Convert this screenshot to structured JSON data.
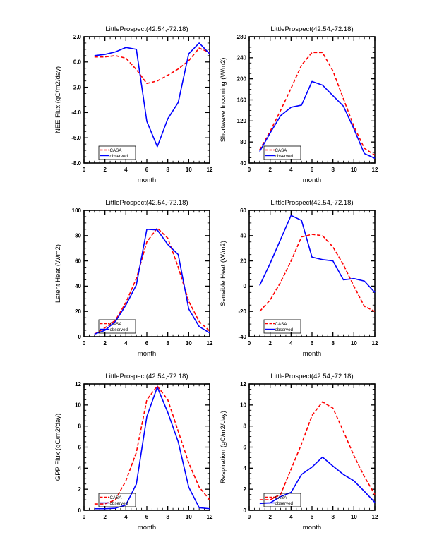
{
  "page": {
    "site_label": "LittleProspect(42.54,-72.18)"
  },
  "legend": {
    "casa_label": "CASA",
    "observed_label": "observed"
  },
  "colors": {
    "casa": "#ff0000",
    "observed": "#0000ff",
    "frame": "#000000",
    "background": "#ffffff"
  },
  "chart_data": [
    {
      "type": "line",
      "title": "LittleProspect(42.54,-72.18)",
      "xlabel": "month",
      "ylabel": "NEE Flux (gC/m2/day)",
      "xlim": [
        0,
        12
      ],
      "xticks": [
        0,
        2,
        4,
        6,
        8,
        10,
        12
      ],
      "xminor": 0.5,
      "ylim": [
        -8,
        2
      ],
      "ytick_step": 2,
      "yminor": 0.5,
      "ydecimals": 1,
      "grid": false,
      "legend_position": "lower-left",
      "x": [
        1,
        2,
        3,
        4,
        5,
        6,
        7,
        8,
        9,
        10,
        11,
        12
      ],
      "series": [
        {
          "name": "CASA",
          "color": "#ff0000",
          "dash": true,
          "values": [
            0.4,
            0.4,
            0.5,
            0.3,
            -0.6,
            -1.7,
            -1.5,
            -1.05,
            -0.55,
            0.1,
            1.1,
            0.75
          ]
        },
        {
          "name": "observed",
          "color": "#0000ff",
          "dash": false,
          "values": [
            0.5,
            0.6,
            0.8,
            1.15,
            1.0,
            -4.7,
            -6.7,
            -4.5,
            -3.2,
            0.65,
            1.5,
            0.65
          ]
        }
      ]
    },
    {
      "type": "line",
      "title": "LittleProspect(42.54,-72.18)",
      "xlabel": "month",
      "ylabel": "Shortwave Incoming (W/m2)",
      "xlim": [
        0,
        12
      ],
      "xticks": [
        0,
        2,
        4,
        6,
        8,
        10,
        12
      ],
      "xminor": 0.5,
      "ylim": [
        40,
        280
      ],
      "ytick_step": 40,
      "yminor": 10,
      "ydecimals": 0,
      "grid": false,
      "legend_position": "lower-left",
      "x": [
        1,
        2,
        3,
        4,
        5,
        6,
        7,
        8,
        9,
        10,
        11,
        12
      ],
      "series": [
        {
          "name": "CASA",
          "color": "#ff0000",
          "dash": true,
          "values": [
            65,
            100,
            140,
            182,
            226,
            250,
            250,
            215,
            162,
            110,
            68,
            55
          ]
        },
        {
          "name": "observed",
          "color": "#0000ff",
          "dash": false,
          "values": [
            62,
            97,
            130,
            146,
            150,
            195,
            188,
            168,
            148,
            105,
            58,
            49
          ]
        }
      ]
    },
    {
      "type": "line",
      "title": "LittleProspect(42.54,-72.18)",
      "xlabel": "month",
      "ylabel": "Latent Heat (W/m2)",
      "xlim": [
        0,
        12
      ],
      "xticks": [
        0,
        2,
        4,
        6,
        8,
        10,
        12
      ],
      "xminor": 0.5,
      "ylim": [
        0,
        100
      ],
      "ytick_step": 20,
      "yminor": 5,
      "ydecimals": 0,
      "grid": false,
      "legend_position": "lower-left",
      "x": [
        1,
        2,
        3,
        4,
        5,
        6,
        7,
        8,
        9,
        10,
        11,
        12
      ],
      "series": [
        {
          "name": "CASA",
          "color": "#ff0000",
          "dash": true,
          "values": [
            2,
            7,
            13,
            27,
            46,
            75,
            86,
            78,
            55,
            28,
            12,
            4.5
          ]
        },
        {
          "name": "observed",
          "color": "#0000ff",
          "dash": false,
          "values": [
            2,
            5,
            12,
            25,
            41,
            85,
            84.5,
            73,
            65,
            22,
            8,
            3
          ]
        }
      ]
    },
    {
      "type": "line",
      "title": "LittleProspect(42.54,-72.18)",
      "xlabel": "month",
      "ylabel": "Sensible Heat (W/m2)",
      "xlim": [
        0,
        12
      ],
      "xticks": [
        0,
        2,
        4,
        6,
        8,
        10,
        12
      ],
      "xminor": 0.5,
      "ylim": [
        -40,
        60
      ],
      "ytick_step": 20,
      "yminor": 5,
      "ydecimals": 0,
      "grid": false,
      "legend_position": "lower-left",
      "x": [
        1,
        2,
        3,
        4,
        5,
        6,
        7,
        8,
        9,
        10,
        11,
        12
      ],
      "series": [
        {
          "name": "CASA",
          "color": "#ff0000",
          "dash": true,
          "values": [
            -20,
            -11,
            3,
            20,
            39,
            41,
            40,
            31,
            17,
            0,
            -16,
            -20
          ]
        },
        {
          "name": "observed",
          "color": "#0000ff",
          "dash": false,
          "values": [
            0.5,
            18,
            37,
            56,
            52,
            23,
            21,
            20,
            5,
            6,
            4,
            -5
          ]
        }
      ]
    },
    {
      "type": "line",
      "title": "LittleProspect(42.54,-72.18)",
      "xlabel": "month",
      "ylabel": "GPP Flux (gC/m2/day)",
      "xlim": [
        0,
        12
      ],
      "xticks": [
        0,
        2,
        4,
        6,
        8,
        10,
        12
      ],
      "xminor": 0.5,
      "ylim": [
        0,
        12
      ],
      "ytick_step": 2,
      "yminor": 0.5,
      "ydecimals": 0,
      "grid": false,
      "legend_position": "lower-left",
      "x": [
        1,
        2,
        3,
        4,
        5,
        6,
        7,
        8,
        9,
        10,
        11,
        12
      ],
      "series": [
        {
          "name": "CASA",
          "color": "#ff0000",
          "dash": true,
          "values": [
            0.6,
            0.6,
            1.0,
            2.8,
            5.5,
            10.5,
            11.8,
            10.5,
            7.5,
            4.5,
            2.2,
            1.0
          ]
        },
        {
          "name": "observed",
          "color": "#0000ff",
          "dash": false,
          "values": [
            0.15,
            0.15,
            0.2,
            0.5,
            2.5,
            8.9,
            11.7,
            9.3,
            6.5,
            2.2,
            0.25,
            0.15
          ]
        }
      ]
    },
    {
      "type": "line",
      "title": "LittleProspect(42.54,-72.18)",
      "xlabel": "month",
      "ylabel": "Respiration (gC/m2/day)",
      "xlim": [
        0,
        12
      ],
      "xticks": [
        0,
        2,
        4,
        6,
        8,
        10,
        12
      ],
      "xminor": 0.5,
      "ylim": [
        0,
        12
      ],
      "ytick_step": 2,
      "yminor": 0.5,
      "ydecimals": 0,
      "grid": false,
      "legend_position": "lower-left",
      "x": [
        1,
        2,
        3,
        4,
        5,
        6,
        7,
        8,
        9,
        10,
        11,
        12
      ],
      "series": [
        {
          "name": "CASA",
          "color": "#ff0000",
          "dash": true,
          "values": [
            1.0,
            1.0,
            1.5,
            3.9,
            6.3,
            9.0,
            10.3,
            9.7,
            7.5,
            5.2,
            3.2,
            1.5
          ]
        },
        {
          "name": "observed",
          "color": "#0000ff",
          "dash": false,
          "values": [
            0.65,
            0.7,
            1.3,
            1.7,
            3.4,
            4.1,
            5.05,
            4.2,
            3.4,
            2.8,
            1.8,
            0.75
          ]
        }
      ]
    }
  ]
}
